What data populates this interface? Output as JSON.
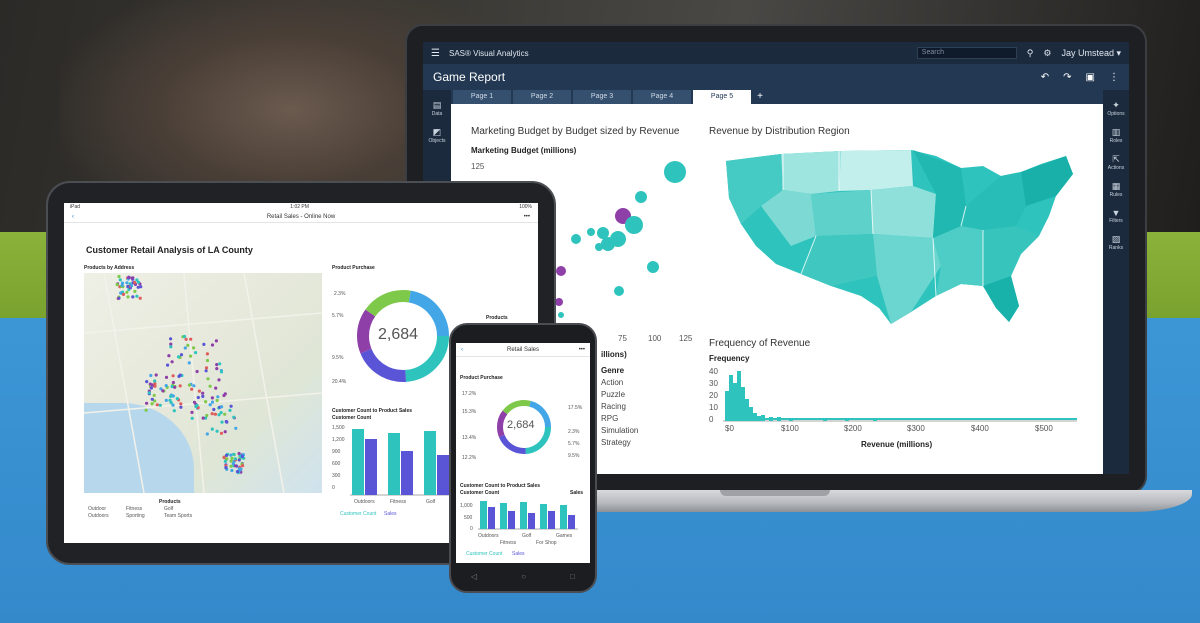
{
  "laptop": {
    "app_name": "SAS® Visual Analytics",
    "search_placeholder": "Search",
    "user": "Jay Umstead ▾",
    "report_title": "Game Report",
    "tabs": [
      {
        "label": "Page 1"
      },
      {
        "label": "Page 2"
      },
      {
        "label": "Page 3"
      },
      {
        "label": "Page 4"
      },
      {
        "label": "Page 5"
      }
    ],
    "active_tab": "Page 5",
    "add_tab": "+",
    "left_rail": [
      {
        "label": "Data"
      },
      {
        "label": "Objects"
      }
    ],
    "right_rail": [
      {
        "label": "Options"
      },
      {
        "label": "Roles"
      },
      {
        "label": "Actions"
      },
      {
        "label": "Rules"
      },
      {
        "label": "Filters"
      },
      {
        "label": "Ranks"
      }
    ],
    "bubble_chart": {
      "title": "Marketing Budget by Budget sized by Revenue",
      "ylabel": "Marketing Budget (millions)",
      "ytick_top": "125",
      "xticks": [
        "75",
        "100",
        "125"
      ],
      "xlabel_fragment": "illions)",
      "legend_title": "Genre",
      "legend": [
        "Action",
        "Puzzle",
        "Racing",
        "RPG",
        "Simulation",
        "Strategy"
      ]
    },
    "map_chart": {
      "title": "Revenue by Distribution Region"
    },
    "histogram": {
      "title": "Frequency of Revenue",
      "ylabel": "Frequency",
      "yticks": [
        "40",
        "30",
        "20",
        "10",
        "0"
      ],
      "xticks": [
        "$0",
        "$100",
        "$200",
        "$300",
        "$400",
        "$500"
      ],
      "xlabel": "Revenue (millions)"
    }
  },
  "tablet": {
    "status_left": "iPad",
    "status_center": "1:02 PM",
    "status_right": "100%",
    "nav_title": "Retail Sales - Online Now",
    "back": "‹",
    "more": "•••",
    "title": "Customer Retail Analysis of LA County",
    "map_label": "Products by Address",
    "map_legend_title": "Products",
    "map_legend": [
      "Outdoor",
      "Fitness",
      "Golf",
      "Outdoors",
      "Sporting",
      "Team Sports"
    ],
    "donut_label": "Product Purchase",
    "donut_value": "2,684",
    "donut_ticks": [
      "2.3%",
      "5.7%",
      "9.5%",
      "20.4%"
    ],
    "donut_legend_title": "Products",
    "bar_label": "Customer Count to Product Sales",
    "bar_ylabel": "Customer Count",
    "bar_yticks": [
      "1,500",
      "1,200",
      "900",
      "600",
      "300",
      "0"
    ],
    "bar_xticks": [
      "Outdoors",
      "Fitness",
      "Golf"
    ],
    "bar_legend": [
      "Customer Count",
      "Sales"
    ]
  },
  "phone": {
    "nav_title": "Retail Sales",
    "back": "‹",
    "more": "•••",
    "donut_label": "Product Purchase",
    "donut_value": "2,684",
    "donut_ticks_left": [
      "17.2%",
      "15.3%",
      "13.4%",
      "12.2%"
    ],
    "donut_ticks_right": [
      "17.5%",
      "2.3%",
      "5.7%",
      "9.5%"
    ],
    "bar_label": "Customer Count to Product Sales",
    "bar_ylabel": "Customer Count",
    "bar_right": "Sales",
    "bar_yticks": [
      "1,000",
      "500",
      "0"
    ],
    "bar_xticks": [
      "Outdoors",
      "Fitness",
      "Golf",
      "For Shop",
      "Games"
    ],
    "bar_legend": [
      "Customer Count",
      "Sales"
    ],
    "buttons": [
      "◁",
      "○",
      "□"
    ]
  },
  "colors": {
    "teal": "#2ec4bd",
    "purple": "#8f3fa8",
    "indigo": "#5a55d6",
    "navy": "#1b2a3d"
  }
}
